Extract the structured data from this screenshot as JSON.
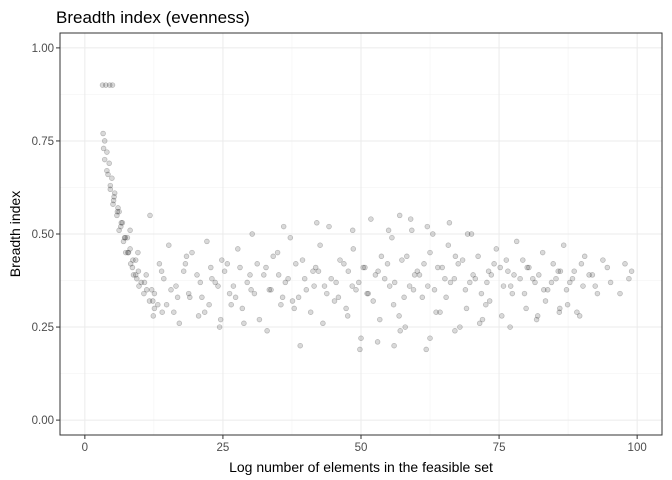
{
  "chart_data": {
    "type": "scatter",
    "title": "Breadth index (evenness)",
    "xlabel": "Log number of elements in the feasible set",
    "ylabel": "Breadth index",
    "xlim": [
      -4.5,
      104.5
    ],
    "ylim": [
      -0.04,
      1.04
    ],
    "x_ticks": [
      0,
      25,
      50,
      75,
      100
    ],
    "x_tick_labels": [
      "0",
      "25",
      "50",
      "75",
      "100"
    ],
    "y_ticks": [
      0.0,
      0.25,
      0.5,
      0.75,
      1.0
    ],
    "y_tick_labels": [
      "0.00",
      "0.25",
      "0.50",
      "0.75",
      "1.00"
    ],
    "grid": true,
    "legend": "none",
    "point_color": "#000000",
    "point_alpha": 0.15,
    "series": [
      {
        "x": [
          3.2,
          3.8,
          4.5,
          5.0,
          3.3,
          3.6,
          4.0,
          4.4,
          4.9,
          5.4,
          6.0,
          6.6,
          7.2,
          7.9,
          8.6,
          9.4,
          3.4,
          4.2,
          5.1,
          6.2,
          7.4,
          8.8,
          3.6,
          4.6,
          5.8,
          7.0,
          8.3,
          9.8,
          4.0,
          5.2,
          6.5,
          7.8,
          9.2,
          10.7,
          4.6,
          5.9,
          7.3,
          8.7,
          10.2,
          11.7,
          5.3,
          6.8,
          8.2,
          9.7,
          11.2,
          12.6,
          6.2,
          7.7,
          9.2,
          10.8,
          12.3,
          8.2,
          9.6,
          11.1,
          12.6,
          14.0,
          11.8,
          12.4,
          13.5,
          14.8,
          15.2,
          16.5,
          17.1,
          18.4,
          19.0,
          20.3,
          21.7,
          22.1,
          23.6,
          24.4,
          25.8,
          26.2,
          27.7,
          28.5,
          29.9,
          30.3,
          31.6,
          32.8,
          33.4,
          34.9,
          35.5,
          36.8,
          37.2,
          38.7,
          39.4,
          40.9,
          41.3,
          42.6,
          43.8,
          44.2,
          45.5,
          46.9,
          47.3,
          48.6,
          49.1,
          50.4,
          51.8,
          52.2,
          53.7,
          54.3,
          55.6,
          56.9,
          57.4,
          58.8,
          59.2,
          60.6,
          61.1,
          62.5,
          63.9,
          64.3,
          65.8,
          66.2,
          67.6,
          68.9,
          69.3,
          70.7,
          71.2,
          72.6,
          73.1,
          74.5,
          75.8,
          76.3,
          77.7,
          78.2,
          79.6,
          80.1,
          81.5,
          82.9,
          83.4,
          84.8,
          85.3,
          86.7,
          87.2,
          88.6,
          89.1,
          90.5,
          91.9,
          92.4,
          93.8,
          94.6,
          95.2,
          96.9,
          97.8,
          98.5,
          99.0,
          13.2,
          15.6,
          17.9,
          19.4,
          21.2,
          23.0,
          24.8,
          26.9,
          28.1,
          30.7,
          32.4,
          34.1,
          36.3,
          38.2,
          40.1,
          42.3,
          44.6,
          46.2,
          48.4,
          50.7,
          52.6,
          54.8,
          56.1,
          58.3,
          60.2,
          62.1,
          64.7,
          66.9,
          68.4,
          70.3,
          72.8,
          74.1,
          76.6,
          78.8,
          80.4,
          82.2,
          84.5,
          86.1,
          88.3,
          90.2,
          14.3,
          16.8,
          18.2,
          20.9,
          22.5,
          24.1,
          25.3,
          27.3,
          29.4,
          31.2,
          33.7,
          35.1,
          37.6,
          39.8,
          41.8,
          43.4,
          45.9,
          47.7,
          49.6,
          51.3,
          53.1,
          55.2,
          57.8,
          59.7,
          61.4,
          63.3,
          65.2,
          67.1,
          69.7,
          71.8,
          73.6,
          75.2,
          77.1,
          79.3,
          81.1,
          83.8,
          85.7,
          87.8,
          89.9,
          91.3,
          12.1,
          13.9,
          16.1,
          18.8,
          20.6,
          22.8,
          24.6,
          26.5,
          28.8,
          30.1,
          33.0,
          35.8,
          37.9,
          39.0,
          41.5,
          43.1,
          45.2,
          47.6,
          49.8,
          51.1,
          53.4,
          55.9,
          57.1,
          59.5,
          61.8,
          63.6,
          65.4,
          67.9,
          69.1,
          71.5,
          73.3,
          75.5,
          77.4,
          79.9,
          81.8,
          83.1,
          85.9,
          87.4,
          89.6,
          92.8,
          36.0,
          42.0,
          48.5,
          57.0,
          62.0,
          66.0,
          70.0,
          55.0,
          59.0,
          63.0,
          50.0,
          53.0,
          56.0,
          58.0,
          62.5,
          67.0,
          72.0,
          77.0,
          82.0,
          86.0
        ],
        "y": [
          0.9,
          0.9,
          0.9,
          0.9,
          0.77,
          0.75,
          0.72,
          0.69,
          0.65,
          0.61,
          0.57,
          0.53,
          0.49,
          0.45,
          0.41,
          0.38,
          0.73,
          0.66,
          0.58,
          0.51,
          0.45,
          0.39,
          0.7,
          0.62,
          0.55,
          0.48,
          0.42,
          0.36,
          0.67,
          0.59,
          0.52,
          0.45,
          0.39,
          0.34,
          0.63,
          0.56,
          0.49,
          0.43,
          0.37,
          0.32,
          0.6,
          0.53,
          0.46,
          0.4,
          0.35,
          0.3,
          0.56,
          0.49,
          0.43,
          0.37,
          0.32,
          0.51,
          0.45,
          0.39,
          0.34,
          0.29,
          0.55,
          0.28,
          0.42,
          0.31,
          0.47,
          0.36,
          0.26,
          0.44,
          0.33,
          0.39,
          0.29,
          0.48,
          0.37,
          0.25,
          0.42,
          0.34,
          0.46,
          0.3,
          0.39,
          0.5,
          0.27,
          0.41,
          0.35,
          0.45,
          0.31,
          0.38,
          0.49,
          0.33,
          0.43,
          0.29,
          0.4,
          0.47,
          0.34,
          0.52,
          0.37,
          0.42,
          0.3,
          0.46,
          0.35,
          0.41,
          0.54,
          0.32,
          0.44,
          0.38,
          0.49,
          0.28,
          0.43,
          0.36,
          0.51,
          0.39,
          0.33,
          0.45,
          0.41,
          0.29,
          0.47,
          0.37,
          0.42,
          0.35,
          0.5,
          0.38,
          0.44,
          0.31,
          0.4,
          0.46,
          0.36,
          0.43,
          0.39,
          0.48,
          0.34,
          0.41,
          0.37,
          0.45,
          0.32,
          0.42,
          0.38,
          0.47,
          0.35,
          0.4,
          0.29,
          0.44,
          0.39,
          0.36,
          0.43,
          0.41,
          0.37,
          0.34,
          0.42,
          0.38,
          0.4,
          0.31,
          0.35,
          0.4,
          0.45,
          0.33,
          0.38,
          0.43,
          0.36,
          0.41,
          0.34,
          0.39,
          0.44,
          0.37,
          0.42,
          0.35,
          0.4,
          0.38,
          0.43,
          0.36,
          0.41,
          0.39,
          0.42,
          0.37,
          0.44,
          0.4,
          0.36,
          0.41,
          0.38,
          0.43,
          0.39,
          0.37,
          0.42,
          0.4,
          0.38,
          0.41,
          0.39,
          0.37,
          0.4,
          0.38,
          0.36,
          0.38,
          0.33,
          0.42,
          0.37,
          0.31,
          0.36,
          0.4,
          0.33,
          0.37,
          0.42,
          0.35,
          0.39,
          0.32,
          0.38,
          0.41,
          0.36,
          0.33,
          0.4,
          0.37,
          0.34,
          0.4,
          0.36,
          0.33,
          0.39,
          0.42,
          0.35,
          0.38,
          0.44,
          0.37,
          0.34,
          0.39,
          0.41,
          0.36,
          0.43,
          0.38,
          0.35,
          0.4,
          0.37,
          0.42,
          0.39,
          0.35,
          0.4,
          0.29,
          0.34,
          0.28,
          0.41,
          0.27,
          0.31,
          0.26,
          0.35,
          0.24,
          0.33,
          0.3,
          0.2,
          0.36,
          0.26,
          0.32,
          0.28,
          0.19,
          0.34,
          0.27,
          0.31,
          0.24,
          0.35,
          0.19,
          0.29,
          0.33,
          0.25,
          0.3,
          0.26,
          0.32,
          0.28,
          0.34,
          0.3,
          0.27,
          0.35,
          0.29,
          0.31,
          0.28,
          0.34,
          0.52,
          0.53,
          0.51,
          0.55,
          0.52,
          0.53,
          0.5,
          0.51,
          0.54,
          0.5,
          0.22,
          0.21,
          0.2,
          0.25,
          0.22,
          0.24,
          0.27,
          0.25,
          0.28,
          0.3
        ]
      }
    ]
  }
}
